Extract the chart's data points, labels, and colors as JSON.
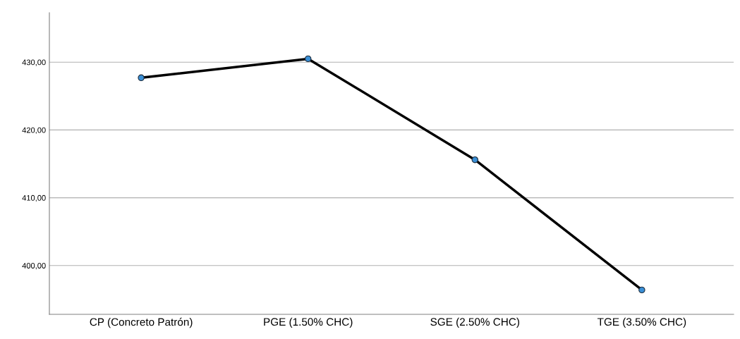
{
  "chart_data": {
    "type": "line",
    "categories": [
      "CP (Concreto Patrón)",
      "PGE (1.50% CHC)",
      "SGE (2.50% CHC)",
      "TGE (3.50% CHC)"
    ],
    "series": [
      {
        "color": "#000000",
        "values": [
          427.7,
          430.5,
          415.6,
          396.4
        ]
      }
    ],
    "ylim": [
      392.8,
      437.3
    ],
    "yticks": [
      {
        "value": 400,
        "label": "400,00"
      },
      {
        "value": 410,
        "label": "410,00"
      },
      {
        "value": 420,
        "label": "420,00"
      },
      {
        "value": 430,
        "label": "430,00"
      }
    ],
    "grid": "y",
    "marker": "circle",
    "line_style": "solid",
    "legend": false
  }
}
